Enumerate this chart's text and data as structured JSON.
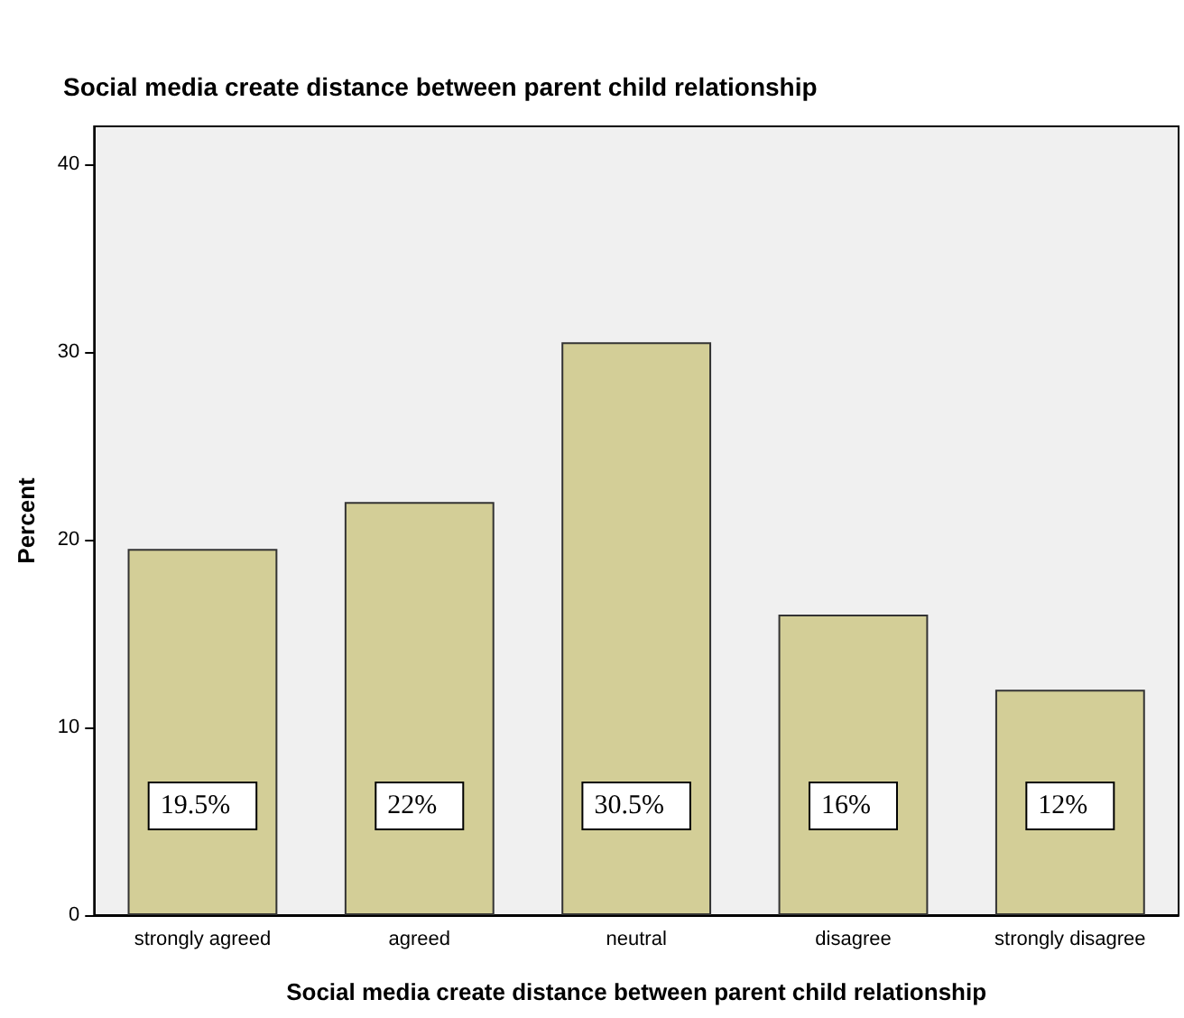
{
  "chart_data": {
    "type": "bar",
    "title": "Social media create distance between parent child relationship",
    "xlabel": "Social media create distance between parent child relationship",
    "ylabel": "Percent",
    "categories": [
      "strongly agreed",
      "agreed",
      "neutral",
      "disagree",
      "strongly disagree"
    ],
    "values": [
      19.5,
      22,
      30.5,
      16,
      12
    ],
    "color": "#d3ce97",
    "value_labels": [
      "19.5%",
      "22%",
      "30.5%",
      "16%",
      "12%"
    ],
    "ylim": [
      0,
      42
    ],
    "yticks": [
      0,
      10,
      20,
      30,
      40
    ],
    "grid": false
  }
}
